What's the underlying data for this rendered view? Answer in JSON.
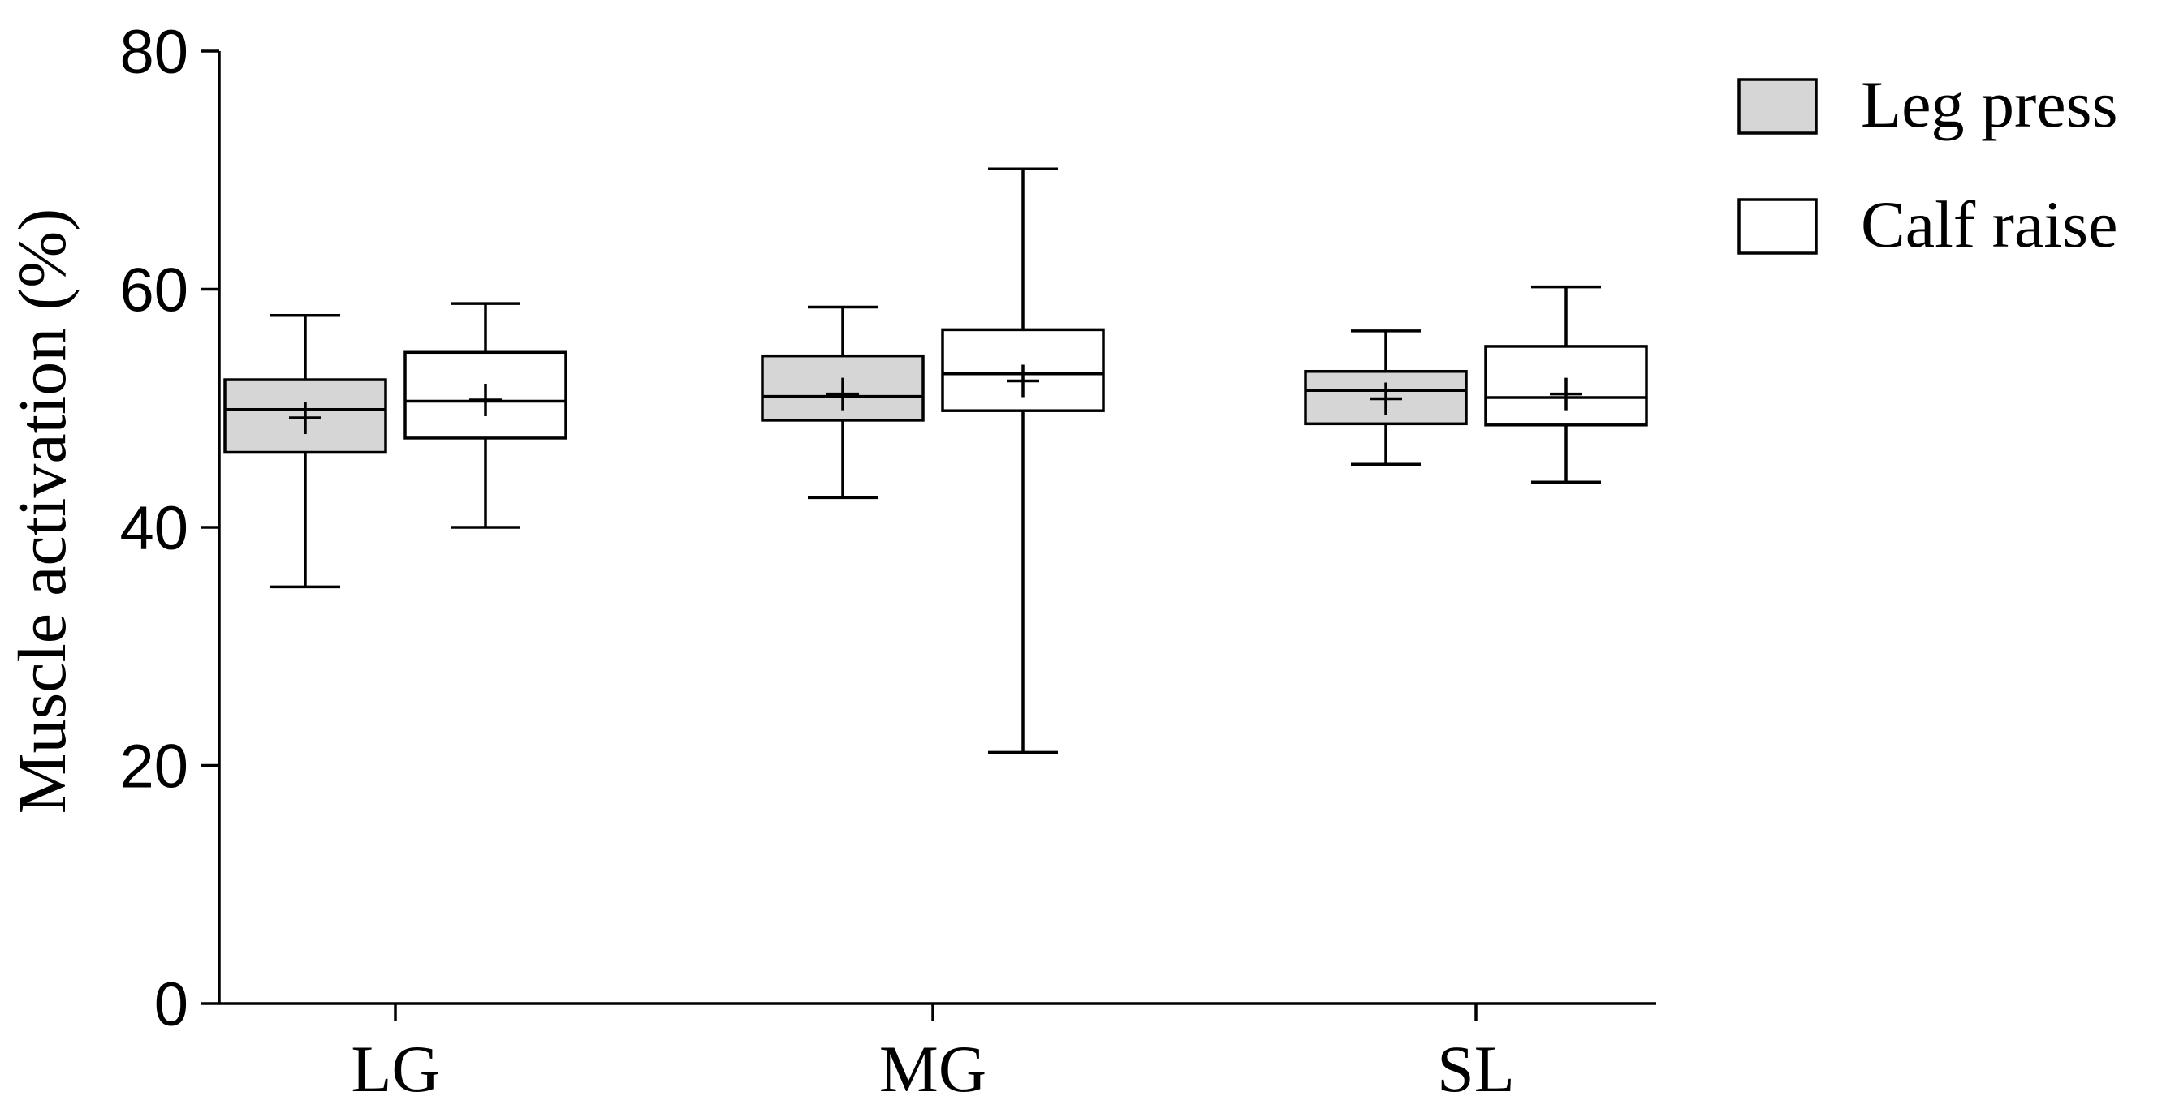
{
  "chart_data": {
    "type": "box",
    "ylabel": "Muscle activation (%)",
    "xlabel": "",
    "ylim": [
      0,
      80
    ],
    "yticks": [
      0,
      20,
      40,
      60,
      80
    ],
    "categories": [
      "LG",
      "MG",
      "SL"
    ],
    "legend_position": "top-right",
    "series": [
      {
        "name": "Leg press",
        "color": "#d6d6d6",
        "boxes": [
          {
            "min": 35.0,
            "q1": 46.3,
            "median": 49.9,
            "q3": 52.4,
            "max": 57.8,
            "mean": 49.2
          },
          {
            "min": 42.5,
            "q1": 49.0,
            "median": 51.0,
            "q3": 54.4,
            "max": 58.5,
            "mean": 51.2
          },
          {
            "min": 45.3,
            "q1": 48.7,
            "median": 51.5,
            "q3": 53.1,
            "max": 56.5,
            "mean": 50.8
          }
        ]
      },
      {
        "name": "Calf raise",
        "color": "#ffffff",
        "boxes": [
          {
            "min": 40.0,
            "q1": 47.5,
            "median": 50.6,
            "q3": 54.7,
            "max": 58.8,
            "mean": 50.7
          },
          {
            "min": 21.1,
            "q1": 49.8,
            "median": 52.9,
            "q3": 56.6,
            "max": 70.1,
            "mean": 52.3
          },
          {
            "min": 43.8,
            "q1": 48.6,
            "median": 50.9,
            "q3": 55.2,
            "max": 60.2,
            "mean": 51.2
          }
        ]
      }
    ]
  }
}
